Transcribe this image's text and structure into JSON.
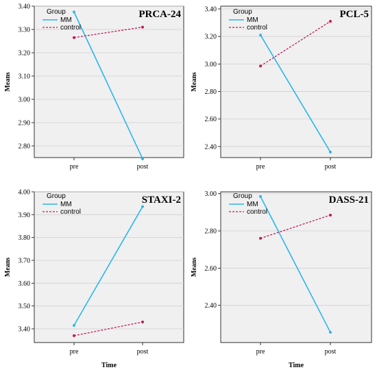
{
  "chart_data": [
    {
      "type": "line",
      "title": "PRCA-24",
      "xlabel": "",
      "ylabel": "Means",
      "categories": [
        "pre",
        "post"
      ],
      "ylim": [
        2.75,
        3.4
      ],
      "yticks": [
        "3.40",
        "3.30",
        "3.20",
        "3.10",
        "3.00",
        "2.90",
        "2.80"
      ],
      "legend_title": "Group",
      "legend_placement": "top-left",
      "grid": true,
      "series": [
        {
          "name": "MM",
          "values": [
            3.375,
            2.745
          ],
          "color": "#29b6ec",
          "dash": "solid"
        },
        {
          "name": "control",
          "values": [
            3.265,
            3.31
          ],
          "color": "#c2185b",
          "dash": "dashed"
        }
      ]
    },
    {
      "type": "line",
      "title": "PCL-5",
      "xlabel": "",
      "ylabel": "Means",
      "categories": [
        "pre",
        "post"
      ],
      "ylim": [
        2.32,
        3.42
      ],
      "yticks": [
        "3.40",
        "3.20",
        "3.00",
        "2.80",
        "2.60",
        "2.40"
      ],
      "legend_title": "Group",
      "legend_placement": "top-left",
      "grid": true,
      "series": [
        {
          "name": "MM",
          "values": [
            3.21,
            2.36
          ],
          "color": "#29b6ec",
          "dash": "solid"
        },
        {
          "name": "control",
          "values": [
            2.985,
            3.31
          ],
          "color": "#c2185b",
          "dash": "dashed"
        }
      ]
    },
    {
      "type": "line",
      "title": "STAXI-2",
      "xlabel": "Time",
      "ylabel": "Means",
      "categories": [
        "pre",
        "post"
      ],
      "ylim": [
        3.34,
        4.0
      ],
      "yticks": [
        "4.00",
        "3.90",
        "3.80",
        "3.70",
        "3.60",
        "3.50",
        "3.40"
      ],
      "legend_title": "Group",
      "legend_placement": "top-left",
      "grid": true,
      "series": [
        {
          "name": "MM",
          "values": [
            3.415,
            3.935
          ],
          "color": "#29b6ec",
          "dash": "solid"
        },
        {
          "name": "control",
          "values": [
            3.37,
            3.43
          ],
          "color": "#c2185b",
          "dash": "dashed"
        }
      ]
    },
    {
      "type": "line",
      "title": "DASS-21",
      "xlabel": "Time",
      "ylabel": "Means",
      "categories": [
        "pre",
        "post"
      ],
      "ylim": [
        2.2,
        3.01
      ],
      "yticks": [
        "3.00",
        "2.80",
        "2.60",
        "2.40"
      ],
      "legend_title": "Group",
      "legend_placement": "top-left",
      "grid": true,
      "series": [
        {
          "name": "MM",
          "values": [
            2.985,
            2.255
          ],
          "color": "#29b6ec",
          "dash": "solid"
        },
        {
          "name": "control",
          "values": [
            2.76,
            2.885
          ],
          "color": "#c2185b",
          "dash": "dashed"
        }
      ]
    }
  ]
}
